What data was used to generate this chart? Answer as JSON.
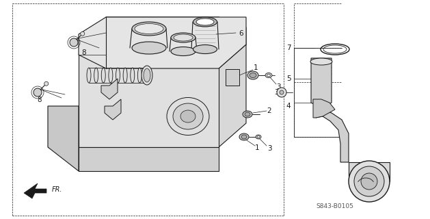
{
  "bg_color": "#ffffff",
  "line_color": "#1a1a1a",
  "part_number": "S843-B0105",
  "fig_width": 6.29,
  "fig_height": 3.2,
  "dpi": 100
}
